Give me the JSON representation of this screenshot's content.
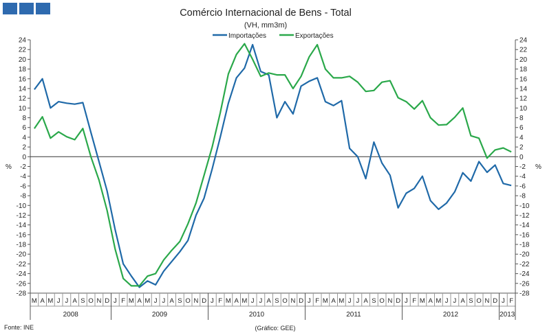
{
  "logo": {
    "color": "#2e6aaf"
  },
  "chart_data": {
    "type": "line",
    "title": "Comércio Internacional de Bens - Total",
    "subtitle": "(VH, mm3m)",
    "ylabel_left": "%",
    "ylabel_right": "%",
    "ylim": [
      -28,
      24
    ],
    "yticks": [
      24,
      22,
      20,
      18,
      16,
      14,
      12,
      10,
      8,
      6,
      4,
      2,
      0,
      -2,
      -4,
      -6,
      -8,
      -10,
      -12,
      -14,
      -16,
      -18,
      -20,
      -22,
      -24,
      -26,
      -28
    ],
    "months": [
      "M",
      "A",
      "M",
      "J",
      "J",
      "A",
      "S",
      "O",
      "N",
      "D",
      "J",
      "F",
      "M",
      "A",
      "M",
      "J",
      "J",
      "A",
      "S",
      "O",
      "N",
      "D",
      "J",
      "F",
      "M",
      "A",
      "M",
      "J",
      "J",
      "A",
      "S",
      "O",
      "N",
      "D",
      "J",
      "F",
      "M",
      "A",
      "M",
      "J",
      "J",
      "A",
      "S",
      "O",
      "N",
      "D",
      "J",
      "F",
      "M",
      "A",
      "M",
      "J",
      "J",
      "A",
      "S",
      "O",
      "N",
      "D",
      "J",
      "F"
    ],
    "years": [
      {
        "label": "2008",
        "start": 0,
        "end": 10
      },
      {
        "label": "2009",
        "start": 10,
        "end": 22
      },
      {
        "label": "2010",
        "start": 22,
        "end": 34
      },
      {
        "label": "2011",
        "start": 34,
        "end": 46
      },
      {
        "label": "2012",
        "start": 46,
        "end": 58
      },
      {
        "label": "2013",
        "start": 58,
        "end": 60
      }
    ],
    "legend_position": "top-center",
    "grid": false,
    "series": [
      {
        "name": "Importações",
        "color": "#1f69a8",
        "values": [
          13.8,
          16.0,
          10.0,
          11.3,
          11.0,
          10.8,
          11.1,
          5.0,
          -1.0,
          -7.0,
          -15.0,
          -22.0,
          -24.5,
          -26.8,
          -25.5,
          -26.3,
          -23.5,
          -21.5,
          -19.5,
          -17.2,
          -12.0,
          -8.5,
          -2.5,
          4.0,
          11.0,
          16.2,
          18.2,
          23.0,
          17.5,
          16.8,
          8.0,
          11.3,
          8.8,
          14.5,
          15.5,
          16.2,
          11.3,
          10.5,
          11.5,
          1.7,
          0.0,
          -4.5,
          3.0,
          -1.3,
          -3.8,
          -10.5,
          -7.5,
          -6.5,
          -4.0,
          -9.0,
          -10.8,
          -9.5,
          -7.2,
          -3.3,
          -5.0,
          -1.0,
          -3.2,
          -1.7,
          -5.5,
          -5.9
        ]
      },
      {
        "name": "Exportações",
        "color": "#2aa84a",
        "values": [
          5.8,
          8.2,
          3.8,
          5.1,
          4.1,
          3.5,
          5.8,
          0.0,
          -4.8,
          -11.0,
          -19.0,
          -25.0,
          -26.5,
          -26.5,
          -24.5,
          -24.0,
          -21.2,
          -19.2,
          -17.4,
          -13.8,
          -9.5,
          -3.8,
          2.0,
          9.0,
          17.0,
          21.0,
          23.2,
          20.0,
          16.5,
          17.2,
          16.8,
          16.8,
          14.0,
          16.5,
          20.5,
          23.0,
          18.0,
          16.2,
          16.2,
          16.5,
          15.3,
          13.4,
          13.6,
          15.3,
          15.6,
          12.1,
          11.3,
          9.8,
          11.5,
          8.0,
          6.5,
          6.6,
          8.1,
          10.0,
          4.3,
          3.8,
          -0.3,
          1.4,
          1.8,
          1.0
        ]
      }
    ],
    "footer_left": "Fonte: INE",
    "footer_center": "(Gráfico: GEE)"
  }
}
